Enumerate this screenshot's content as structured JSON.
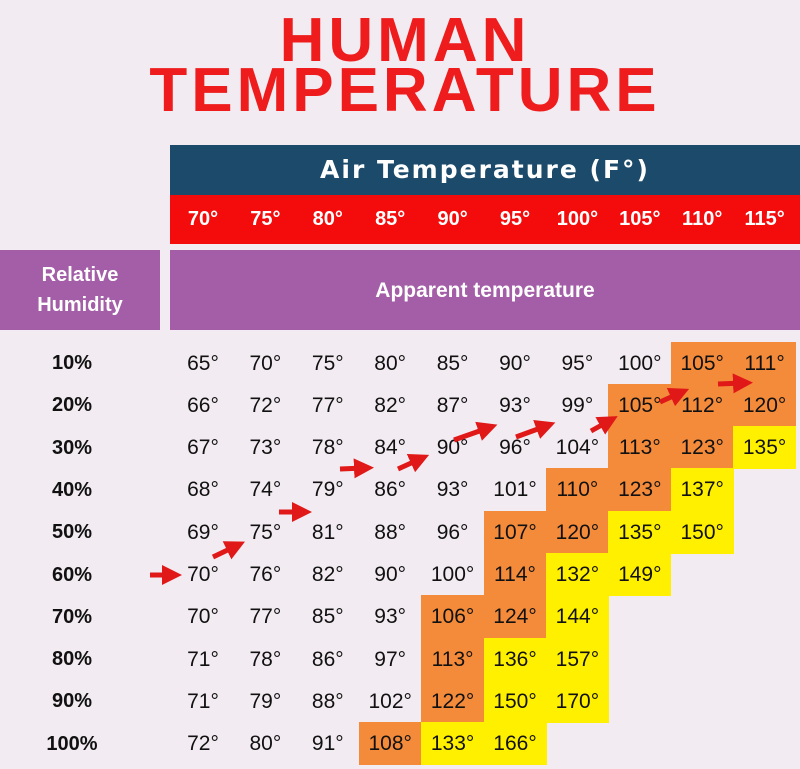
{
  "title": {
    "line1": "HUMAN",
    "line2": "TEMPERATURE"
  },
  "header": {
    "air_temperature": "Air Temperature (F°)",
    "relative_humidity": "Relative Humidity",
    "apparent_temperature": "Apparent temperature"
  },
  "colors": {
    "title": "#ee1c1c",
    "air_header": "#1b4a6a",
    "column_header": "#f40c0c",
    "label_bars": "#a35ea7",
    "caution_orange": "#f48b3b",
    "danger_yellow": "#fff000",
    "arrow": "#e01818"
  },
  "chart_data": {
    "type": "heatmap",
    "title": "HUMAN TEMPERATURE",
    "xlabel": "Air Temperature (F°)",
    "ylabel": "Relative Humidity",
    "value_label": "Apparent temperature",
    "columns": [
      "70°",
      "75°",
      "80°",
      "85°",
      "90°",
      "95°",
      "100°",
      "105°",
      "110°",
      "115°"
    ],
    "rows": [
      "10%",
      "20%",
      "30%",
      "40%",
      "50%",
      "60%",
      "70%",
      "80%",
      "90%",
      "100%"
    ],
    "values": [
      [
        65,
        70,
        75,
        80,
        85,
        90,
        95,
        100,
        105,
        111
      ],
      [
        66,
        72,
        77,
        82,
        87,
        93,
        99,
        105,
        112,
        120
      ],
      [
        67,
        73,
        78,
        84,
        90,
        96,
        104,
        113,
        123,
        135
      ],
      [
        68,
        74,
        79,
        86,
        93,
        101,
        110,
        123,
        137,
        null
      ],
      [
        69,
        75,
        81,
        88,
        96,
        107,
        120,
        135,
        150,
        null
      ],
      [
        70,
        76,
        82,
        90,
        100,
        114,
        132,
        149,
        null,
        null
      ],
      [
        70,
        77,
        85,
        93,
        106,
        124,
        144,
        null,
        null,
        null
      ],
      [
        71,
        78,
        86,
        97,
        113,
        136,
        157,
        null,
        null,
        null
      ],
      [
        71,
        79,
        88,
        102,
        122,
        150,
        170,
        null,
        null,
        null
      ],
      [
        72,
        80,
        91,
        108,
        133,
        166,
        null,
        null,
        null,
        null
      ]
    ],
    "color_bands": [
      {
        "min": 105,
        "max": 129,
        "color": "#f48b3b"
      },
      {
        "min": 130,
        "color": "#fff000"
      }
    ],
    "unit_suffix": "°"
  }
}
